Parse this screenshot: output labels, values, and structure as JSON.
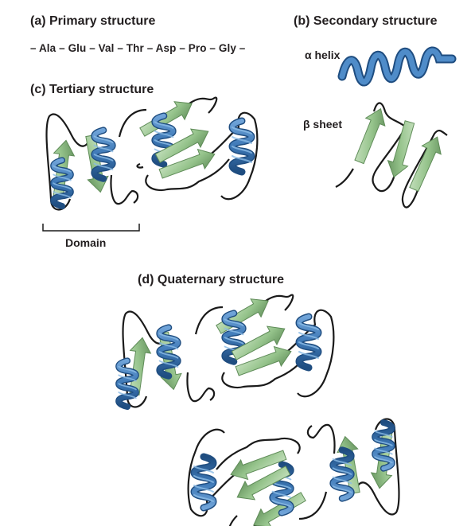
{
  "panels": {
    "primary": {
      "title": "(a) Primary structure",
      "sequence": "– Ala – Glu – Val – Thr – Asp – Pro – Gly –"
    },
    "secondary": {
      "title": "(b) Secondary structure",
      "alpha_label": "α helix",
      "beta_label": "β sheet"
    },
    "tertiary": {
      "title": "(c) Tertiary structure",
      "domain_label": "Domain"
    },
    "quaternary": {
      "title": "(d) Quaternary structure"
    }
  },
  "colors": {
    "helix": "#3d78b6",
    "helix_dark": "#1f4d80",
    "strand": "#8fbf86",
    "strand_dark": "#5f8c58",
    "loop": "#1a1a1a",
    "text": "#231f20"
  }
}
